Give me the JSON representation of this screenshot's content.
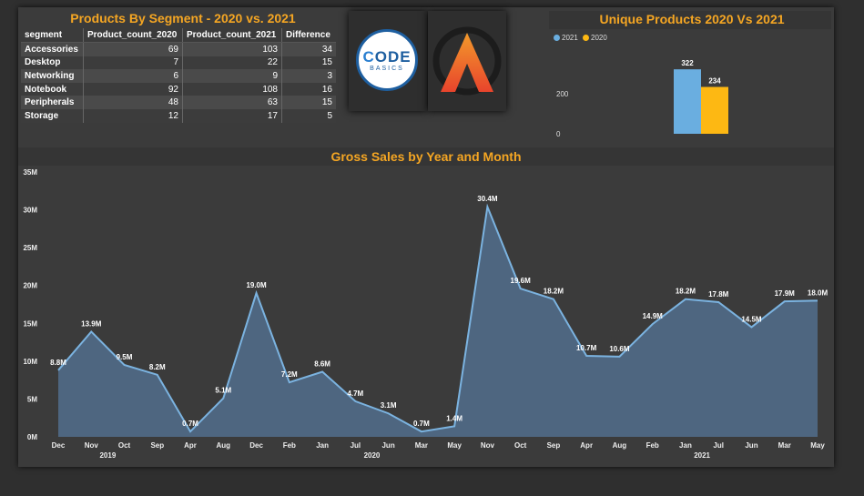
{
  "segment_table": {
    "title": "Products By Segment - 2020 vs. 2021",
    "columns": [
      "segment",
      "Product_count_2020",
      "Product_count_2021",
      "Difference"
    ],
    "rows": [
      {
        "segment": "Accessories",
        "c2020": "69",
        "c2021": "103",
        "diff": "34"
      },
      {
        "segment": "Desktop",
        "c2020": "7",
        "c2021": "22",
        "diff": "15"
      },
      {
        "segment": "Networking",
        "c2020": "6",
        "c2021": "9",
        "diff": "3"
      },
      {
        "segment": "Notebook",
        "c2020": "92",
        "c2021": "108",
        "diff": "16"
      },
      {
        "segment": "Peripherals",
        "c2020": "48",
        "c2021": "63",
        "diff": "15"
      },
      {
        "segment": "Storage",
        "c2020": "12",
        "c2021": "17",
        "diff": "5"
      }
    ]
  },
  "logos": {
    "codebasics_top": "ODE",
    "codebasics_c": "C",
    "codebasics_bottom": "BASICS"
  },
  "colors": {
    "accent": "#f5a623",
    "series_2021": "#6aaee0",
    "series_2020": "#fdb813",
    "area_fill": "#4f6884",
    "area_line": "#7bb3e0"
  },
  "chart_data": [
    {
      "type": "bar",
      "title": "Unique Products 2020 Vs 2021",
      "legend": [
        "2021",
        "2020"
      ],
      "legend_position": "top-left",
      "series": [
        {
          "name": "2021",
          "values": [
            322
          ]
        },
        {
          "name": "2020",
          "values": [
            234
          ]
        }
      ],
      "yticks": [
        "200",
        "0"
      ],
      "ylim": [
        0,
        350
      ]
    },
    {
      "type": "area",
      "title": "Gross Sales by Year and Month",
      "categories": [
        "Dec",
        "Nov",
        "Oct",
        "Sep",
        "Apr",
        "Aug",
        "Dec",
        "Feb",
        "Jan",
        "Jul",
        "Jun",
        "Mar",
        "May",
        "Nov",
        "Oct",
        "Sep",
        "Apr",
        "Aug",
        "Feb",
        "Jan",
        "Jul",
        "Jun",
        "Mar",
        "May"
      ],
      "values": [
        8.8,
        13.9,
        9.5,
        8.2,
        0.7,
        5.1,
        19.0,
        7.2,
        8.6,
        4.7,
        3.1,
        0.7,
        1.4,
        30.4,
        19.6,
        18.2,
        10.7,
        10.6,
        14.9,
        18.2,
        17.8,
        14.5,
        17.9,
        18.0
      ],
      "labels": [
        "8.8M",
        "13.9M",
        "9.5M",
        "8.2M",
        "0.7M",
        "5.1M",
        "19.0M",
        "7.2M",
        "8.6M",
        "4.7M",
        "3.1M",
        "0.7M",
        "1.4M",
        "30.4M",
        "19.6M",
        "18.2M",
        "10.7M",
        "10.6M",
        "14.9M",
        "18.2M",
        "17.8M",
        "14.5M",
        "17.9M",
        "18.0M"
      ],
      "years": [
        {
          "label": "2019",
          "start": 0,
          "end": 3
        },
        {
          "label": "2020",
          "start": 4,
          "end": 15
        },
        {
          "label": "2021",
          "start": 16,
          "end": 23
        }
      ],
      "yticks": [
        "0M",
        "5M",
        "10M",
        "15M",
        "20M",
        "25M",
        "30M",
        "35M"
      ],
      "ylim": [
        0,
        35
      ],
      "grid": false
    }
  ]
}
